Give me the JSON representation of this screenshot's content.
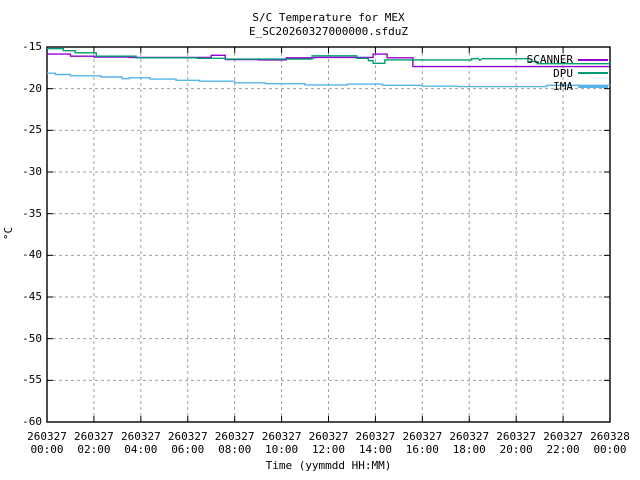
{
  "chart_data": {
    "type": "line",
    "title": "S/C Temperature for MEX",
    "subtitle": "E_SC20260327000000.sfduZ",
    "xlabel": "Time (yymmdd HH:MM)",
    "ylabel": "°C",
    "xlim_hours": [
      0,
      24
    ],
    "ylim": [
      -60,
      -15
    ],
    "grid": true,
    "grid_color": "#a0a0a0",
    "border_color": "#000000",
    "background_color": "#ffffff",
    "legend_position": "top-right-inside",
    "yticks": [
      {
        "v": -15,
        "label": "-15"
      },
      {
        "v": -20,
        "label": "-20"
      },
      {
        "v": -25,
        "label": "-25"
      },
      {
        "v": -30,
        "label": "-30"
      },
      {
        "v": -35,
        "label": "-35"
      },
      {
        "v": -40,
        "label": "-40"
      },
      {
        "v": -45,
        "label": "-45"
      },
      {
        "v": -50,
        "label": "-50"
      },
      {
        "v": -55,
        "label": "-55"
      },
      {
        "v": -60,
        "label": "-60"
      }
    ],
    "xticks": [
      {
        "h": 0,
        "l1": "260327",
        "l2": "00:00"
      },
      {
        "h": 2,
        "l1": "260327",
        "l2": "02:00"
      },
      {
        "h": 4,
        "l1": "260327",
        "l2": "04:00"
      },
      {
        "h": 6,
        "l1": "260327",
        "l2": "06:00"
      },
      {
        "h": 8,
        "l1": "260327",
        "l2": "08:00"
      },
      {
        "h": 10,
        "l1": "260327",
        "l2": "10:00"
      },
      {
        "h": 12,
        "l1": "260327",
        "l2": "12:00"
      },
      {
        "h": 14,
        "l1": "260327",
        "l2": "14:00"
      },
      {
        "h": 16,
        "l1": "260327",
        "l2": "16:00"
      },
      {
        "h": 18,
        "l1": "260327",
        "l2": "18:00"
      },
      {
        "h": 20,
        "l1": "260327",
        "l2": "20:00"
      },
      {
        "h": 22,
        "l1": "260327",
        "l2": "22:00"
      },
      {
        "h": 24,
        "l1": "260328",
        "l2": "00:00"
      }
    ],
    "series": [
      {
        "name": "SCANNER",
        "color": "#9400D3",
        "points": [
          [
            0,
            -15.85
          ],
          [
            1.0,
            -15.85
          ],
          [
            1.0,
            -16.1
          ],
          [
            2.0,
            -16.1
          ],
          [
            2.0,
            -16.2
          ],
          [
            3.5,
            -16.2
          ],
          [
            3.5,
            -16.25
          ],
          [
            7.0,
            -16.25
          ],
          [
            7.0,
            -16.0
          ],
          [
            7.6,
            -16.0
          ],
          [
            7.6,
            -16.5
          ],
          [
            9.0,
            -16.5
          ],
          [
            9.0,
            -16.55
          ],
          [
            10.2,
            -16.55
          ],
          [
            10.2,
            -16.3
          ],
          [
            11.4,
            -16.3
          ],
          [
            11.4,
            -16.25
          ],
          [
            13.9,
            -16.25
          ],
          [
            13.9,
            -15.85
          ],
          [
            14.5,
            -15.85
          ],
          [
            14.5,
            -16.3
          ],
          [
            15.6,
            -16.3
          ],
          [
            15.6,
            -17.35
          ],
          [
            24,
            -17.35
          ]
        ]
      },
      {
        "name": "DPU",
        "color": "#009E73",
        "points": [
          [
            0,
            -15.2
          ],
          [
            0.7,
            -15.2
          ],
          [
            0.7,
            -15.45
          ],
          [
            1.2,
            -15.45
          ],
          [
            1.2,
            -15.7
          ],
          [
            2.1,
            -15.7
          ],
          [
            2.1,
            -16.1
          ],
          [
            3.8,
            -16.1
          ],
          [
            3.8,
            -16.3
          ],
          [
            6.4,
            -16.3
          ],
          [
            6.4,
            -16.35
          ],
          [
            7.6,
            -16.35
          ],
          [
            7.6,
            -16.45
          ],
          [
            11.3,
            -16.45
          ],
          [
            11.3,
            -16.05
          ],
          [
            13.2,
            -16.05
          ],
          [
            13.2,
            -16.35
          ],
          [
            13.7,
            -16.35
          ],
          [
            13.7,
            -16.65
          ],
          [
            13.9,
            -16.65
          ],
          [
            13.9,
            -16.95
          ],
          [
            14.4,
            -16.95
          ],
          [
            14.4,
            -16.55
          ],
          [
            18.1,
            -16.55
          ],
          [
            18.1,
            -16.4
          ],
          [
            18.4,
            -16.4
          ],
          [
            18.45,
            -16.6
          ],
          [
            18.55,
            -16.4
          ],
          [
            20.5,
            -16.4
          ],
          [
            20.5,
            -16.75
          ],
          [
            20.9,
            -16.75
          ],
          [
            20.9,
            -17.0
          ],
          [
            24,
            -17.0
          ]
        ]
      },
      {
        "name": "IMA",
        "color": "#56B4E9",
        "points": [
          [
            0,
            -18.15
          ],
          [
            0.35,
            -18.15
          ],
          [
            0.35,
            -18.3
          ],
          [
            1.0,
            -18.3
          ],
          [
            1.0,
            -18.45
          ],
          [
            2.3,
            -18.45
          ],
          [
            2.3,
            -18.6
          ],
          [
            3.2,
            -18.6
          ],
          [
            3.2,
            -18.8
          ],
          [
            3.5,
            -18.8
          ],
          [
            3.5,
            -18.7
          ],
          [
            4.4,
            -18.7
          ],
          [
            4.4,
            -18.85
          ],
          [
            5.5,
            -18.85
          ],
          [
            5.5,
            -19.0
          ],
          [
            6.5,
            -19.0
          ],
          [
            6.5,
            -19.1
          ],
          [
            8.0,
            -19.1
          ],
          [
            8.0,
            -19.3
          ],
          [
            9.3,
            -19.3
          ],
          [
            9.3,
            -19.4
          ],
          [
            11.0,
            -19.4
          ],
          [
            11.0,
            -19.55
          ],
          [
            12.8,
            -19.55
          ],
          [
            12.8,
            -19.45
          ],
          [
            14.3,
            -19.45
          ],
          [
            14.3,
            -19.6
          ],
          [
            16.0,
            -19.6
          ],
          [
            16.0,
            -19.7
          ],
          [
            17.5,
            -19.7
          ],
          [
            17.5,
            -19.75
          ],
          [
            21.3,
            -19.75
          ],
          [
            21.3,
            -19.6
          ],
          [
            24,
            -19.6
          ]
        ]
      }
    ]
  }
}
